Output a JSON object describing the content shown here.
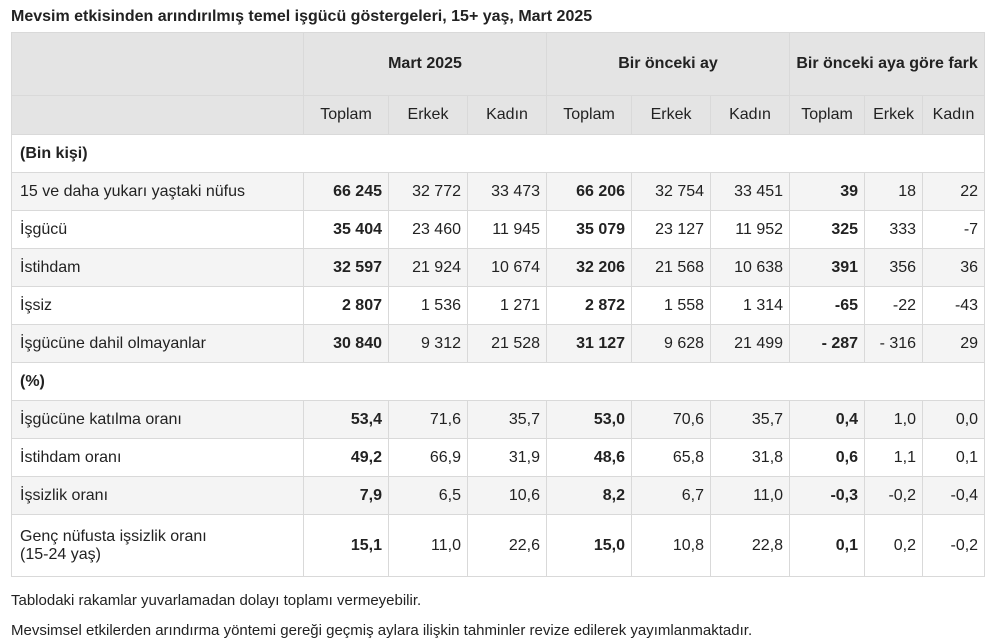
{
  "title": "Mevsim etkisinden arındırılmış temel işgücü göstergeleri, 15+ yaş, Mart 2025",
  "groups": [
    "Mart 2025",
    "Bir önceki ay",
    "Bir önceki aya göre fark"
  ],
  "subheaders": [
    "Toplam",
    "Erkek",
    "Kadın"
  ],
  "sections": {
    "bin": "(Bin kişi)",
    "pct": "(%)"
  },
  "rows_bin": [
    {
      "label": "15 ve daha yukarı yaştaki nüfus",
      "v": [
        "66 245",
        "32 772",
        "33 473",
        "66 206",
        "32 754",
        "33 451",
        "39",
        "18",
        "22"
      ]
    },
    {
      "label": "İşgücü",
      "v": [
        "35 404",
        "23 460",
        "11 945",
        "35 079",
        "23 127",
        "11 952",
        "325",
        "333",
        "-7"
      ]
    },
    {
      "label": "İstihdam",
      "v": [
        "32 597",
        "21 924",
        "10 674",
        "32 206",
        "21 568",
        "10 638",
        "391",
        "356",
        "36"
      ]
    },
    {
      "label": "İşsiz",
      "v": [
        "2 807",
        "1 536",
        "1 271",
        "2 872",
        "1 558",
        "1 314",
        "-65",
        "-22",
        "-43"
      ]
    },
    {
      "label": "İşgücüne dahil olmayanlar",
      "v": [
        "30 840",
        "9 312",
        "21 528",
        "31 127",
        "9 628",
        "21 499",
        "- 287",
        "- 316",
        "29"
      ]
    }
  ],
  "rows_pct": [
    {
      "label": "İşgücüne katılma oranı",
      "v": [
        "53,4",
        "71,6",
        "35,7",
        "53,0",
        "70,6",
        "35,7",
        "0,4",
        "1,0",
        "0,0"
      ]
    },
    {
      "label": "İstihdam oranı",
      "v": [
        "49,2",
        "66,9",
        "31,9",
        "48,6",
        "65,8",
        "31,8",
        "0,6",
        "1,1",
        "0,1"
      ]
    },
    {
      "label": "İşsizlik oranı",
      "v": [
        "7,9",
        "6,5",
        "10,6",
        "8,2",
        "6,7",
        "11,0",
        "-0,3",
        "-0,2",
        "-0,4"
      ]
    },
    {
      "label": "Genç nüfusta işsizlik oranı",
      "label2": "(15-24 yaş)",
      "v": [
        "15,1",
        "11,0",
        "22,6",
        "15,0",
        "10,8",
        "22,8",
        "0,1",
        "0,2",
        "-0,2"
      ]
    }
  ],
  "notes": [
    "Tablodaki rakamlar yuvarlamadan dolayı toplamı vermeyebilir.",
    "Mevsimsel etkilerden arındırma yöntemi gereği geçmiş aylara ilişkin tahminler revize edilerek yayımlanmaktadır."
  ]
}
